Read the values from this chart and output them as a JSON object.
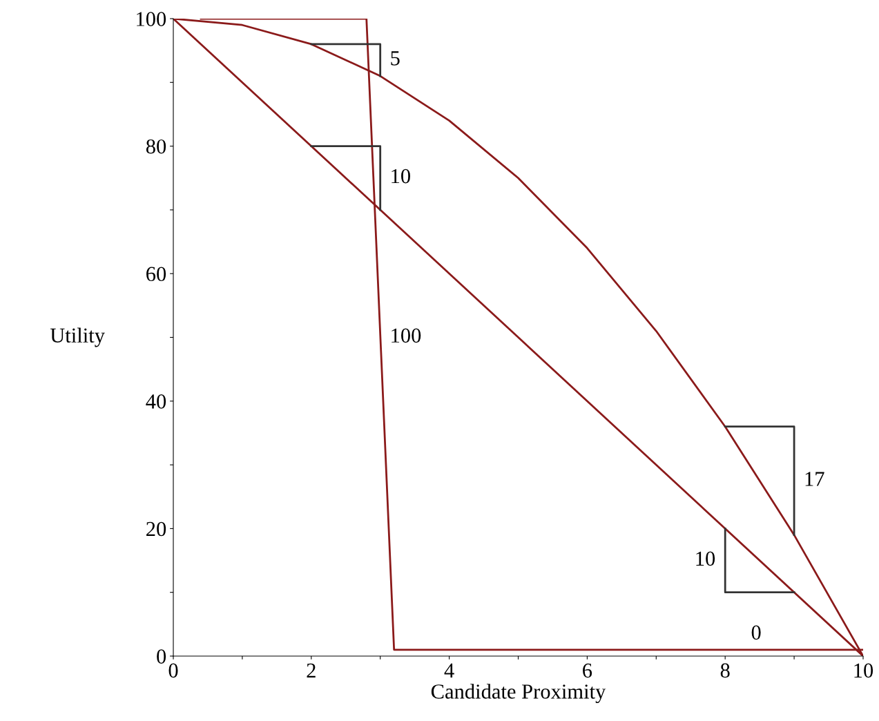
{
  "chart_data": {
    "type": "line",
    "xlabel": "Candidate Proximity",
    "ylabel": "Utility",
    "xlim": [
      0,
      10
    ],
    "ylim": [
      0,
      100
    ],
    "xticks": [
      0,
      {
        "value": 1,
        "label": null
      },
      2,
      {
        "value": 3,
        "label": null
      },
      4,
      {
        "value": 5,
        "label": null
      },
      6,
      {
        "value": 7,
        "label": null
      },
      8,
      {
        "value": 9,
        "label": null
      },
      10
    ],
    "yticks": [
      0,
      {
        "value": 10,
        "label": null
      },
      20,
      {
        "value": 30,
        "label": null
      },
      40,
      {
        "value": 50,
        "label": null
      },
      60,
      {
        "value": 70,
        "label": null
      },
      80,
      {
        "value": 90,
        "label": null
      },
      100
    ],
    "grid": false,
    "legend": false,
    "marker": "none",
    "line_style": "solid",
    "series": [
      {
        "color": "#8b1a1a",
        "x": [
          0,
          10
        ],
        "values": [
          100,
          0
        ]
      },
      {
        "color": "#8b1a1a",
        "x": [
          0,
          1,
          2,
          3,
          4,
          5,
          6,
          7,
          8,
          9,
          10
        ],
        "values": [
          100,
          99,
          96,
          91,
          84,
          75,
          64,
          51,
          36,
          19,
          0
        ]
      },
      {
        "color": "#8b1a1a",
        "x": [
          0.4,
          2.8,
          3.2,
          10
        ],
        "values": [
          100,
          100,
          1,
          1
        ]
      },
      {
        "color": "#333333",
        "x": [
          2,
          3,
          3
        ],
        "values": [
          96,
          96,
          91
        ]
      },
      {
        "color": "#333333",
        "x": [
          2,
          3,
          3
        ],
        "values": [
          80,
          80,
          70
        ]
      },
      {
        "color": "#333333",
        "x": [
          8,
          9,
          9
        ],
        "values": [
          36,
          36,
          19
        ]
      },
      {
        "color": "#333333",
        "x": [
          8,
          8,
          9
        ],
        "values": [
          20,
          10,
          10
        ]
      }
    ],
    "annotations": [
      {
        "text": "5",
        "x": 3,
        "y": 93.5
      },
      {
        "text": "10",
        "x": 3,
        "y": 75
      },
      {
        "text": "100",
        "x": 3.0,
        "y": 50
      },
      {
        "text": "17",
        "x": 9,
        "y": 27.5
      },
      {
        "text": "10",
        "x": 8,
        "y": 15
      },
      {
        "text": "0",
        "x": 8.45,
        "y": 1
      }
    ]
  }
}
